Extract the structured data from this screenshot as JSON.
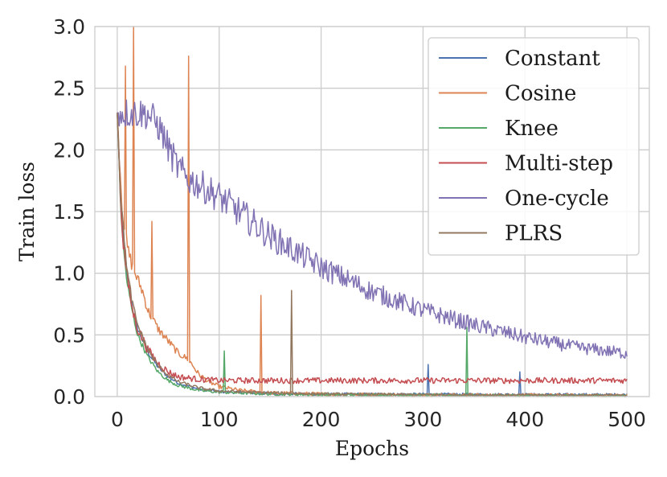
{
  "chart_data": {
    "type": "line",
    "title": "",
    "xlabel": "Epochs",
    "ylabel": "Train loss",
    "xlim": [
      -22,
      522
    ],
    "ylim": [
      0,
      3.0
    ],
    "xticks": [
      0,
      100,
      200,
      300,
      400,
      500
    ],
    "yticks": [
      0.0,
      0.5,
      1.0,
      1.5,
      2.0,
      2.5,
      3.0
    ],
    "xtick_labels": [
      "0",
      "100",
      "200",
      "300",
      "400",
      "500"
    ],
    "ytick_labels": [
      "0.0",
      "0.5",
      "1.0",
      "1.5",
      "2.0",
      "2.5",
      "3.0"
    ],
    "grid": true,
    "legend_position": "top-right",
    "series": [
      {
        "name": "Constant",
        "color": "#4c72b0",
        "x": [
          0,
          3,
          6,
          10,
          15,
          20,
          30,
          40,
          50,
          60,
          80,
          100,
          150,
          200,
          300,
          400,
          500
        ],
        "y": [
          2.3,
          1.7,
          1.3,
          0.95,
          0.72,
          0.55,
          0.36,
          0.24,
          0.16,
          0.11,
          0.06,
          0.04,
          0.025,
          0.02,
          0.018,
          0.016,
          0.015
        ],
        "noise": 0.03,
        "spikes": [
          {
            "x": 305,
            "y": 0.26
          },
          {
            "x": 395,
            "y": 0.2
          }
        ]
      },
      {
        "name": "Cosine",
        "color": "#dd8452",
        "x": [
          0,
          5,
          10,
          15,
          20,
          25,
          30,
          40,
          50,
          60,
          70,
          80,
          90,
          100,
          120,
          150,
          200,
          300,
          400,
          500
        ],
        "y": [
          2.3,
          1.5,
          1.2,
          1.05,
          0.95,
          0.85,
          0.7,
          0.55,
          0.45,
          0.35,
          0.3,
          0.18,
          0.12,
          0.08,
          0.05,
          0.03,
          0.02,
          0.012,
          0.01,
          0.008
        ],
        "noise": 0.04,
        "spikes": [
          {
            "x": 8,
            "y": 2.68
          },
          {
            "x": 16,
            "y": 3.0
          },
          {
            "x": 34,
            "y": 1.42
          },
          {
            "x": 70,
            "y": 2.76
          },
          {
            "x": 141,
            "y": 0.82
          }
        ]
      },
      {
        "name": "Knee",
        "color": "#55a868",
        "x": [
          0,
          3,
          6,
          10,
          15,
          20,
          30,
          40,
          50,
          60,
          80,
          100,
          150,
          200,
          300,
          400,
          500
        ],
        "y": [
          2.3,
          1.6,
          1.2,
          0.9,
          0.68,
          0.5,
          0.32,
          0.2,
          0.13,
          0.09,
          0.05,
          0.035,
          0.02,
          0.015,
          0.012,
          0.008,
          0.006
        ],
        "noise": 0.03,
        "spikes": [
          {
            "x": 105,
            "y": 0.37
          },
          {
            "x": 343,
            "y": 0.56
          }
        ]
      },
      {
        "name": "Multi-step",
        "color": "#c44e52",
        "x": [
          0,
          3,
          6,
          10,
          15,
          20,
          30,
          40,
          50,
          60,
          80,
          100,
          150,
          200,
          300,
          400,
          500
        ],
        "y": [
          2.3,
          1.65,
          1.25,
          0.95,
          0.7,
          0.55,
          0.38,
          0.27,
          0.2,
          0.16,
          0.14,
          0.13,
          0.13,
          0.13,
          0.13,
          0.13,
          0.13
        ],
        "noise": 0.05,
        "spikes": []
      },
      {
        "name": "One-cycle",
        "color": "#8172b3",
        "x": [
          0,
          10,
          20,
          30,
          35,
          40,
          45,
          50,
          55,
          60,
          70,
          80,
          100,
          150,
          200,
          250,
          300,
          350,
          400,
          450,
          500
        ],
        "y": [
          2.3,
          2.3,
          2.3,
          2.29,
          2.25,
          2.2,
          2.12,
          2.02,
          1.93,
          1.85,
          1.76,
          1.72,
          1.62,
          1.3,
          1.05,
          0.85,
          0.7,
          0.58,
          0.48,
          0.4,
          0.35
        ],
        "noise": 0.07,
        "spikes": []
      },
      {
        "name": "PLRS",
        "color": "#937860",
        "x": [
          0,
          3,
          6,
          10,
          15,
          20,
          30,
          40,
          50,
          60,
          80,
          100,
          150,
          200,
          300,
          400,
          500
        ],
        "y": [
          2.3,
          1.7,
          1.35,
          1.0,
          0.75,
          0.58,
          0.38,
          0.25,
          0.17,
          0.12,
          0.07,
          0.045,
          0.03,
          0.02,
          0.015,
          0.012,
          0.01
        ],
        "noise": 0.03,
        "spikes": [
          {
            "x": 171,
            "y": 0.86
          }
        ]
      }
    ]
  }
}
